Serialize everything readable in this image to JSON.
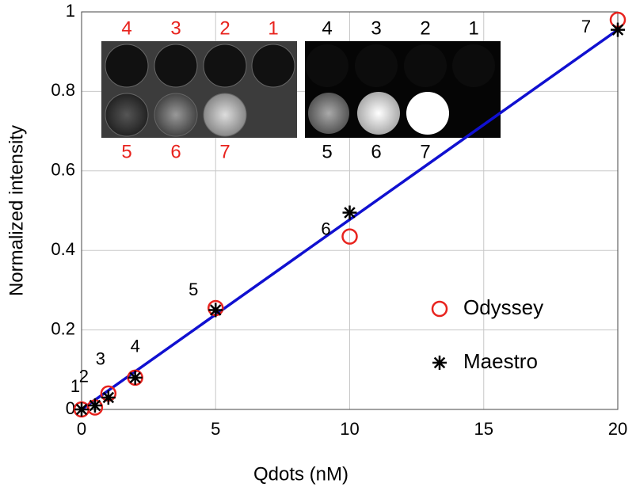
{
  "chart_data": {
    "type": "scatter",
    "xlabel": "Qdots (nM)",
    "ylabel": "Normalized intensity",
    "x": [
      0,
      0.5,
      1,
      2,
      5,
      10,
      20
    ],
    "series": [
      {
        "name": "Odyssey",
        "color": "#e8231e",
        "marker": "circle",
        "values": [
          0,
          0.005,
          0.04,
          0.08,
          0.255,
          0.435,
          0.98
        ]
      },
      {
        "name": "Maestro",
        "color": "#000000",
        "marker": "asterisk",
        "values": [
          0,
          0.01,
          0.03,
          0.08,
          0.25,
          0.495,
          0.955
        ]
      }
    ],
    "fit_line": {
      "color": "#1010d0",
      "x": [
        0,
        20
      ],
      "values": [
        0,
        0.955
      ]
    },
    "point_labels": [
      "1",
      "2",
      "3",
      "4",
      "5",
      "6",
      "7"
    ],
    "xlim": [
      0,
      20
    ],
    "ylim": [
      0,
      1
    ],
    "xticks": [
      0,
      5,
      10,
      15,
      20
    ],
    "yticks": [
      0,
      0.2,
      0.4,
      0.6,
      0.8,
      1
    ],
    "grid": true,
    "legend": "lower right",
    "insets": [
      {
        "label_color": "#e8231e",
        "top_labels": [
          "4",
          "3",
          "2",
          "1"
        ],
        "bottom_labels": [
          "5",
          "6",
          "7"
        ]
      },
      {
        "label_color": "#000000",
        "top_labels": [
          "4",
          "3",
          "2",
          "1"
        ],
        "bottom_labels": [
          "5",
          "6",
          "7"
        ]
      }
    ]
  }
}
